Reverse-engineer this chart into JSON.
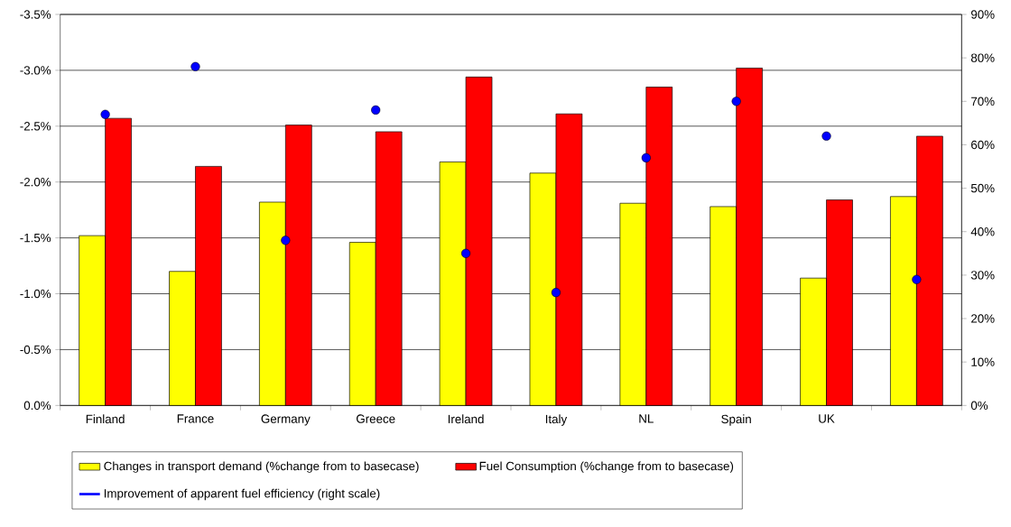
{
  "chart_data": {
    "type": "bar",
    "categories": [
      "Finland",
      "France",
      "Germany",
      "Greece",
      "Ireland",
      "Italy",
      "NL",
      "Spain",
      "UK",
      null
    ],
    "series": [
      {
        "name": "Changes in transport demand (%change from to basecase)",
        "color": "#ffff00",
        "values": [
          -1.52,
          -1.2,
          -1.82,
          -1.46,
          -2.18,
          -2.08,
          -1.81,
          -1.78,
          -1.14,
          -1.87
        ]
      },
      {
        "name": "Fuel Consumption (%change from to basecase)",
        "color": "#ff0000",
        "values": [
          -2.57,
          -2.14,
          -2.51,
          -2.45,
          -2.94,
          -2.61,
          -2.85,
          -3.02,
          -1.84,
          -2.41
        ]
      },
      {
        "name": "Improvement of apparent fuel efficiency (right scale)",
        "color": "#0000ff",
        "type": "scatter",
        "axis": "y2",
        "values": [
          67,
          78,
          38,
          68,
          35,
          26,
          57,
          70,
          62,
          29
        ]
      }
    ],
    "ylim": [
      0,
      -3.5
    ],
    "yticks": [
      {
        "value": 0,
        "label": "0.0%"
      },
      {
        "value": -0.5,
        "label": "-0.5%"
      },
      {
        "value": -1.0,
        "label": "-1.0%"
      },
      {
        "value": -1.5,
        "label": "-1.5%"
      },
      {
        "value": -2.0,
        "label": "-2.0%"
      },
      {
        "value": -2.5,
        "label": "-2.5%"
      },
      {
        "value": -3.0,
        "label": "-3.0%"
      },
      {
        "value": -3.5,
        "label": "-3.5%"
      }
    ],
    "y2lim": [
      0,
      90
    ],
    "y2ticks": [
      {
        "value": 0,
        "label": "0%"
      },
      {
        "value": 10,
        "label": "10%"
      },
      {
        "value": 20,
        "label": "20%"
      },
      {
        "value": 30,
        "label": "30%"
      },
      {
        "value": 40,
        "label": "40%"
      },
      {
        "value": 50,
        "label": "50%"
      },
      {
        "value": 60,
        "label": "60%"
      },
      {
        "value": 70,
        "label": "70%"
      },
      {
        "value": 80,
        "label": "80%"
      },
      {
        "value": 90,
        "label": "90%"
      }
    ],
    "grid": "y",
    "legend": "bottom"
  }
}
